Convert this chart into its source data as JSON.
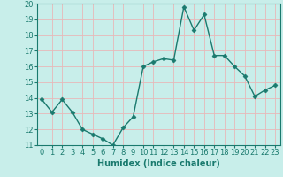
{
  "x": [
    0,
    1,
    2,
    3,
    4,
    5,
    6,
    7,
    8,
    9,
    10,
    11,
    12,
    13,
    14,
    15,
    16,
    17,
    18,
    19,
    20,
    21,
    22,
    23
  ],
  "y": [
    13.9,
    13.1,
    13.9,
    13.1,
    12.0,
    11.7,
    11.4,
    11.0,
    12.1,
    12.8,
    16.0,
    16.3,
    16.5,
    16.4,
    19.8,
    18.3,
    19.3,
    16.7,
    16.7,
    16.0,
    15.4,
    14.1,
    14.5,
    14.8
  ],
  "line_color": "#1a7a6e",
  "marker": "D",
  "marker_size": 2.5,
  "bg_color": "#c8eeea",
  "grid_color": "#e8b8b8",
  "xlabel": "Humidex (Indice chaleur)",
  "xlim": [
    -0.5,
    23.5
  ],
  "ylim": [
    11,
    20
  ],
  "yticks": [
    11,
    12,
    13,
    14,
    15,
    16,
    17,
    18,
    19,
    20
  ],
  "xticks": [
    0,
    1,
    2,
    3,
    4,
    5,
    6,
    7,
    8,
    9,
    10,
    11,
    12,
    13,
    14,
    15,
    16,
    17,
    18,
    19,
    20,
    21,
    22,
    23
  ],
  "xtick_labels": [
    "0",
    "1",
    "2",
    "3",
    "4",
    "5",
    "6",
    "7",
    "8",
    "9",
    "10",
    "11",
    "12",
    "13",
    "14",
    "15",
    "16",
    "17",
    "18",
    "19",
    "20",
    "21",
    "22",
    "23"
  ],
  "label_fontsize": 7,
  "tick_fontsize": 6
}
